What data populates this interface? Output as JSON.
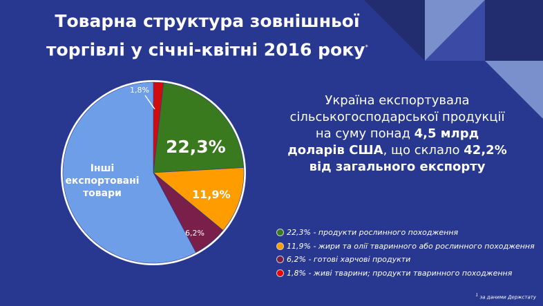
{
  "title": {
    "line1": "Товарна структура зовнішньої",
    "line2": "торгівлі у січні-квітні 2016 року",
    "mark": "*"
  },
  "chart_data": {
    "type": "pie",
    "slices": [
      {
        "label": "1,8%",
        "value": 1.8,
        "color": "#d10c0c"
      },
      {
        "label": "22,3%",
        "value": 22.3,
        "color": "#3a7a1f"
      },
      {
        "label": "11,9%",
        "value": 11.9,
        "color": "#ff9d00"
      },
      {
        "label": "6,2%",
        "value": 6.2,
        "color": "#7a1f49"
      },
      {
        "label": "Інші експортовані товари",
        "value": 57.8,
        "color": "#6f9ee8"
      }
    ]
  },
  "pie_labels": {
    "other1": "Інші",
    "other2": "експортовані",
    "other3": "товари"
  },
  "info": {
    "t1": "Україна експортувала сільськогосподарської продукції на суму понад ",
    "b1": "4,5 млрд доларів США",
    "t2": ", що склало ",
    "b2": "42,2% від загального експорту"
  },
  "legend": [
    {
      "text": "22,3% - продукти рослинного походження",
      "color": "#3a7a1f"
    },
    {
      "text": "11,9% - жири та олії тваринного або рослинного походження",
      "color": "#ff9d00"
    },
    {
      "text": "6,2% - готові харчові продукти",
      "color": "#7a1f49"
    },
    {
      "text": "1,8% - живі тварини; продукти тваринного походження",
      "color": "#e00"
    }
  ],
  "footnote": {
    "mark": "1",
    "text": " за даними Держстату"
  }
}
